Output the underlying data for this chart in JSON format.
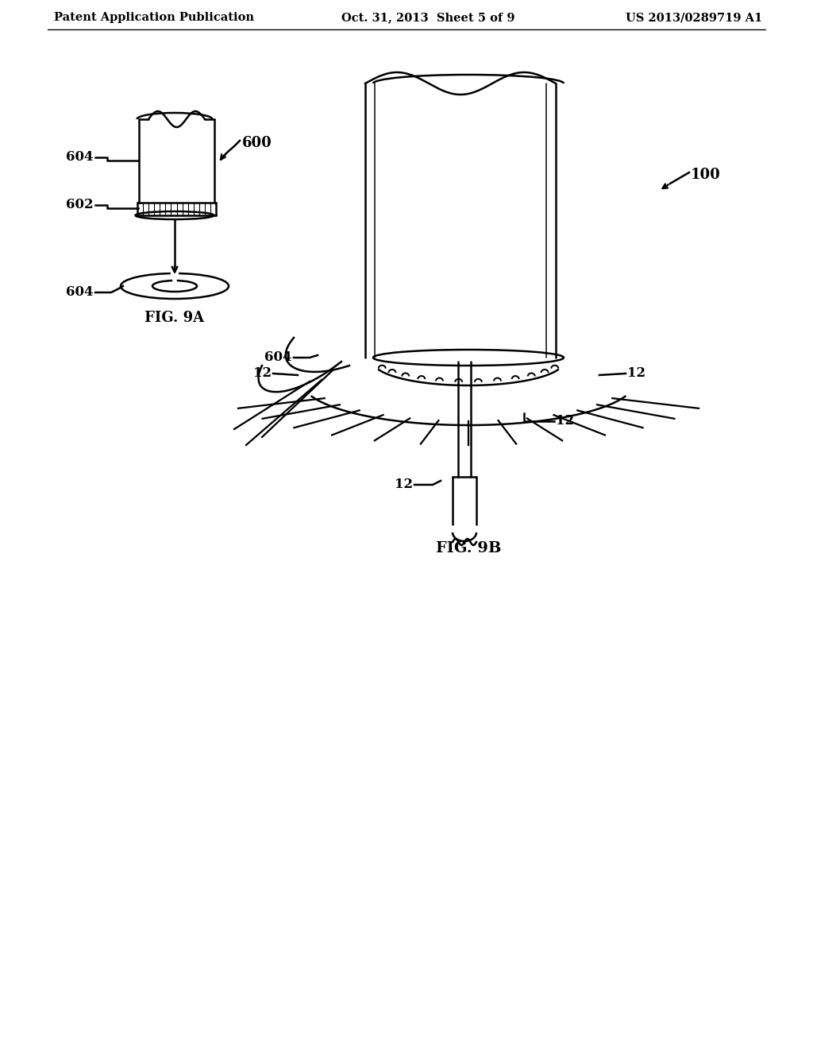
{
  "title_left": "Patent Application Publication",
  "title_mid": "Oct. 31, 2013  Sheet 5 of 9",
  "title_right": "US 2013/0289719 A1",
  "fig9a_label": "FIG. 9A",
  "fig9b_label": "FIG. 9B",
  "label_600": "600",
  "label_602": "602",
  "label_604": "604",
  "label_100": "100",
  "label_12": "12",
  "bg_color": "#ffffff",
  "line_color": "#000000",
  "line_width": 1.8,
  "header_fontsize": 10.5,
  "label_fontsize": 12
}
